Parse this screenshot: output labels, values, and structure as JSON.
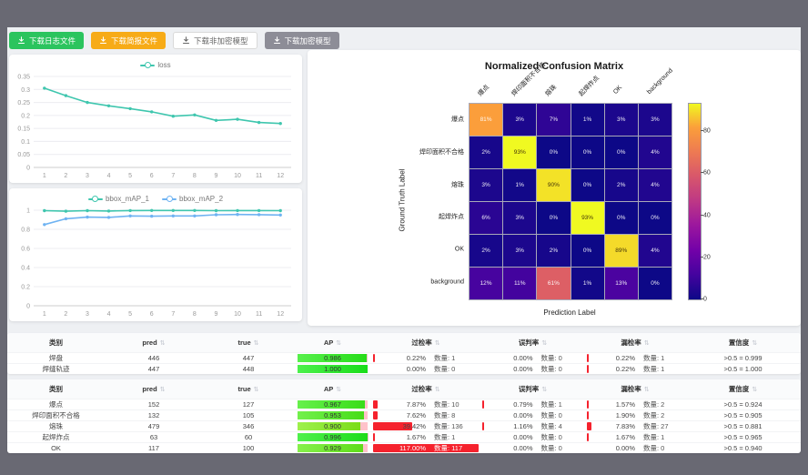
{
  "colors": {
    "teal": "#3fc6ae",
    "blue": "#6fb3f2",
    "green_button": "#2bc45e",
    "orange_button": "#f7ab17",
    "gray_button": "#8d8d97",
    "rate_bar_red": "#f5222d"
  },
  "toolbar": {
    "buttons": [
      {
        "label": "下载日志文件",
        "style": "green"
      },
      {
        "label": "下载简报文件",
        "style": "orange"
      },
      {
        "label": "下载非加密模型",
        "style": "white"
      },
      {
        "label": "下载加密模型",
        "style": "gray"
      }
    ]
  },
  "chart_data": [
    {
      "id": "loss",
      "type": "line",
      "x": [
        1,
        2,
        3,
        4,
        5,
        6,
        7,
        8,
        9,
        10,
        11,
        12
      ],
      "series": [
        {
          "name": "loss",
          "color": "#3fc6ae",
          "values": [
            0.305,
            0.276,
            0.25,
            0.237,
            0.226,
            0.214,
            0.197,
            0.202,
            0.181,
            0.185,
            0.173,
            0.169
          ]
        }
      ],
      "ylim": [
        0,
        0.35
      ],
      "yticks": [
        0,
        0.05,
        0.1,
        0.15,
        0.2,
        0.25,
        0.3,
        0.35
      ],
      "grid": true,
      "legend_position": "top"
    },
    {
      "id": "bbox_map",
      "type": "line",
      "x": [
        1,
        2,
        3,
        4,
        5,
        6,
        7,
        8,
        9,
        10,
        11,
        12
      ],
      "series": [
        {
          "name": "bbox_mAP_1",
          "color": "#3fc6ae",
          "values": [
            0.995,
            0.99,
            0.995,
            0.991,
            0.996,
            0.997,
            0.997,
            0.997,
            0.995,
            0.996,
            0.996,
            0.995
          ]
        },
        {
          "name": "bbox_mAP_2",
          "color": "#6fb3f2",
          "values": [
            0.85,
            0.91,
            0.928,
            0.925,
            0.94,
            0.937,
            0.94,
            0.94,
            0.952,
            0.955,
            0.953,
            0.95
          ]
        }
      ],
      "ylim": [
        0,
        1
      ],
      "yticks": [
        0,
        0.2,
        0.4,
        0.6,
        0.8,
        1
      ],
      "grid": true,
      "legend_position": "top"
    },
    {
      "id": "confusion_matrix",
      "type": "heatmap",
      "title": "Normalized Confusion Matrix",
      "xlabel": "Prediction Label",
      "ylabel": "Ground Truth Label",
      "labels": [
        "爆点",
        "焊印面积不合格",
        "熔珠",
        "起焊炸点",
        "OK",
        "background"
      ],
      "values": [
        [
          81,
          3,
          7,
          1,
          3,
          3
        ],
        [
          2,
          93,
          0,
          0,
          0,
          4
        ],
        [
          3,
          1,
          90,
          0,
          2,
          4
        ],
        [
          6,
          3,
          0,
          93,
          0,
          0
        ],
        [
          2,
          3,
          2,
          0,
          89,
          4
        ],
        [
          12,
          11,
          61,
          1,
          13,
          0
        ]
      ],
      "unit": "%",
      "vmax": 93,
      "colorbar_ticks": [
        0,
        20,
        40,
        60,
        80
      ],
      "colormap": "plasma"
    }
  ],
  "tables": [
    {
      "headers": {
        "cls": "类别",
        "pred": "pred",
        "true": "true",
        "ap": "AP",
        "over": "过检率",
        "mis": "误判率",
        "miss": "漏检率",
        "conf": "置信度"
      },
      "rows": [
        {
          "cls": "焊盘",
          "pred": "446",
          "true": "447",
          "ap": 0.986,
          "ap_label": "0.986",
          "rates": [
            {
              "v": 0.22,
              "label": "0.22%",
              "count": "数量: 1"
            },
            {
              "v": 0,
              "label": "0.00%",
              "count": "数量: 0"
            },
            {
              "v": 0.22,
              "label": "0.22%",
              "count": "数量: 1"
            }
          ],
          "conf": ">0.5 = 0.999"
        },
        {
          "cls": "焊缝轨迹",
          "pred": "447",
          "true": "448",
          "ap": 1.0,
          "ap_label": "1.000",
          "rates": [
            {
              "v": 0,
              "label": "0.00%",
              "count": "数量: 0"
            },
            {
              "v": 0,
              "label": "0.00%",
              "count": "数量: 0"
            },
            {
              "v": 0.22,
              "label": "0.22%",
              "count": "数量: 1"
            }
          ],
          "conf": ">0.5 = 1.000"
        }
      ]
    },
    {
      "headers": {
        "cls": "类别",
        "pred": "pred",
        "true": "true",
        "ap": "AP",
        "over": "过检率",
        "mis": "误判率",
        "miss": "漏检率",
        "conf": "置信度"
      },
      "rows": [
        {
          "cls": "爆点",
          "pred": "152",
          "true": "127",
          "ap": 0.967,
          "ap_label": "0.967",
          "rates": [
            {
              "v": 7.87,
              "label": "7.87%",
              "count": "数量: 10"
            },
            {
              "v": 0.79,
              "label": "0.79%",
              "count": "数量: 1"
            },
            {
              "v": 1.57,
              "label": "1.57%",
              "count": "数量: 2"
            }
          ],
          "conf": ">0.5 = 0.924"
        },
        {
          "cls": "焊印面积不合格",
          "pred": "132",
          "true": "105",
          "ap": 0.953,
          "ap_label": "0.953",
          "rates": [
            {
              "v": 7.62,
              "label": "7.62%",
              "count": "数量: 8"
            },
            {
              "v": 0,
              "label": "0.00%",
              "count": "数量: 0"
            },
            {
              "v": 1.9,
              "label": "1.90%",
              "count": "数量: 2"
            }
          ],
          "conf": ">0.5 = 0.905"
        },
        {
          "cls": "熔珠",
          "pred": "479",
          "true": "346",
          "ap": 0.9,
          "ap_label": "0.900",
          "rates": [
            {
              "v": 39.42,
              "label": "39.42%",
              "count": "数量: 136"
            },
            {
              "v": 1.16,
              "label": "1.16%",
              "count": "数量: 4"
            },
            {
              "v": 7.83,
              "label": "7.83%",
              "count": "数量: 27"
            }
          ],
          "conf": ">0.5 = 0.881"
        },
        {
          "cls": "起焊炸点",
          "pred": "63",
          "true": "60",
          "ap": 0.996,
          "ap_label": "0.996",
          "rates": [
            {
              "v": 1.67,
              "label": "1.67%",
              "count": "数量: 1"
            },
            {
              "v": 0,
              "label": "0.00%",
              "count": "数量: 0"
            },
            {
              "v": 1.67,
              "label": "1.67%",
              "count": "数量: 1"
            }
          ],
          "conf": ">0.5 = 0.965"
        },
        {
          "cls": "OK",
          "pred": "117",
          "true": "100",
          "ap": 0.929,
          "ap_label": "0.929",
          "rates": [
            {
              "v": 117,
              "label": "117.00%",
              "count": "数量: 117"
            },
            {
              "v": 0,
              "label": "0.00%",
              "count": "数量: 0"
            },
            {
              "v": 0,
              "label": "0.00%",
              "count": "数量: 0"
            }
          ],
          "conf": ">0.5 = 0.940"
        }
      ]
    }
  ]
}
